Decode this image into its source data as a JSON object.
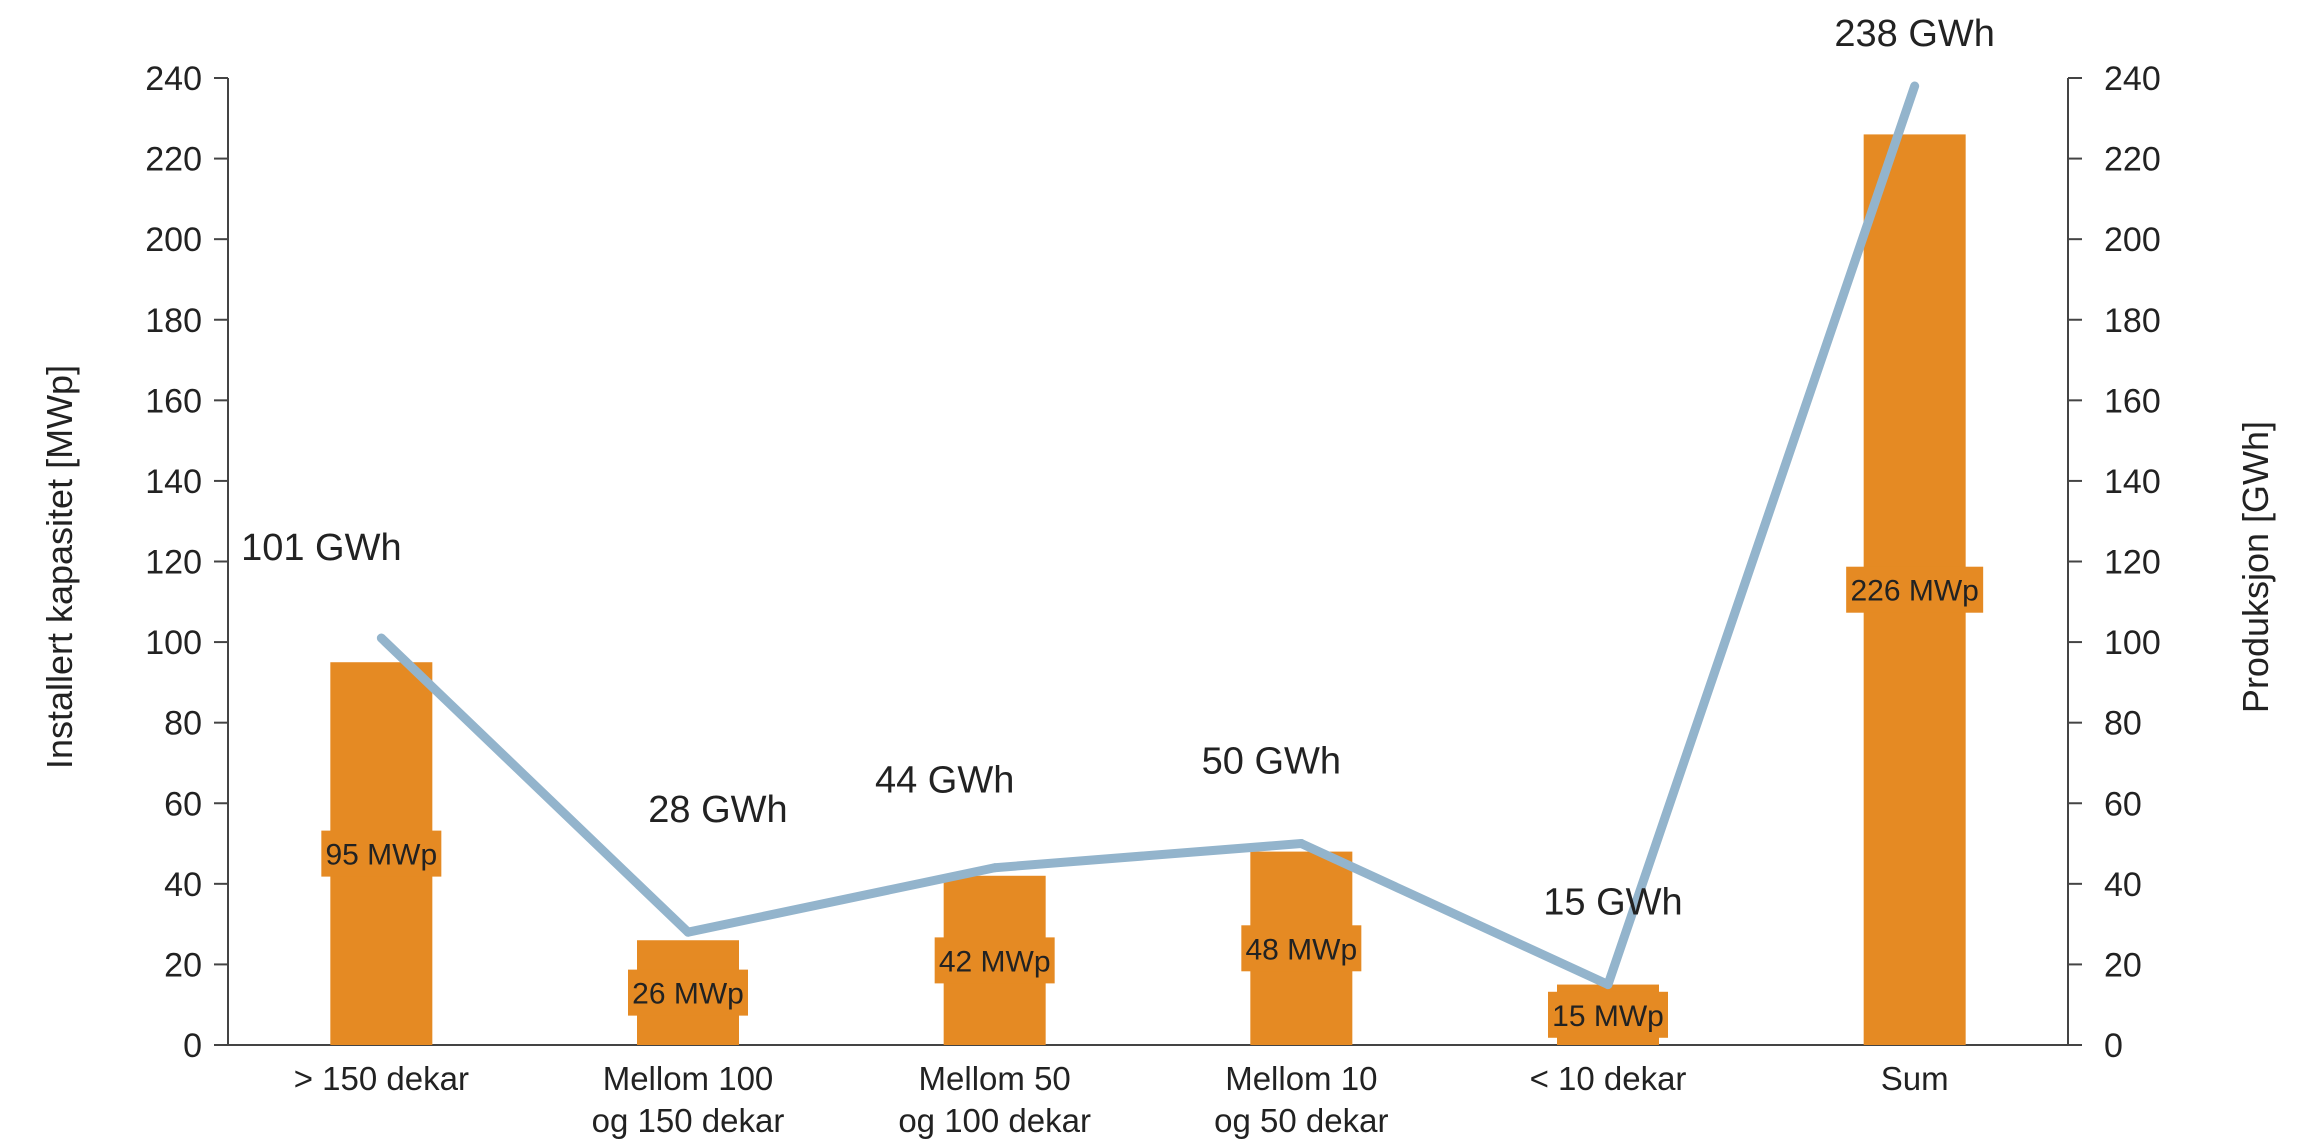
{
  "chart_data": {
    "type": "bar",
    "categories": [
      [
        "> 150 dekar"
      ],
      [
        "Mellom 100",
        "og 150 dekar"
      ],
      [
        "Mellom 50",
        "og 100 dekar"
      ],
      [
        "Mellom 10",
        "og 50 dekar"
      ],
      [
        "< 10 dekar"
      ],
      [
        "Sum"
      ]
    ],
    "ylabel": "Installert kapasitet [MWp]",
    "y2label": "Produksjon [GWh]",
    "ylim": [
      0,
      240
    ],
    "y2lim": [
      0,
      240
    ],
    "yticks": [
      0,
      20,
      40,
      60,
      80,
      100,
      120,
      140,
      160,
      180,
      200,
      220,
      240
    ],
    "series": [
      {
        "type": "bar",
        "axis": "left",
        "values": [
          95,
          26,
          42,
          48,
          15,
          226
        ],
        "labels": [
          "95 MWp",
          "26 MWp",
          "42 MWp",
          "48 MWp",
          "15 MWp",
          "226 MWp"
        ]
      },
      {
        "type": "line",
        "axis": "right",
        "values": [
          101,
          28,
          44,
          50,
          15,
          238
        ],
        "labels": [
          "101 GWh",
          "28 GWh",
          "44 GWh",
          "50 GWh",
          "15 GWh",
          "238 GWh"
        ]
      }
    ],
    "legend": "none",
    "grid": false,
    "colors": {
      "bar": "#E58A23",
      "line": "#93B4CC",
      "axis": "#444444"
    }
  }
}
